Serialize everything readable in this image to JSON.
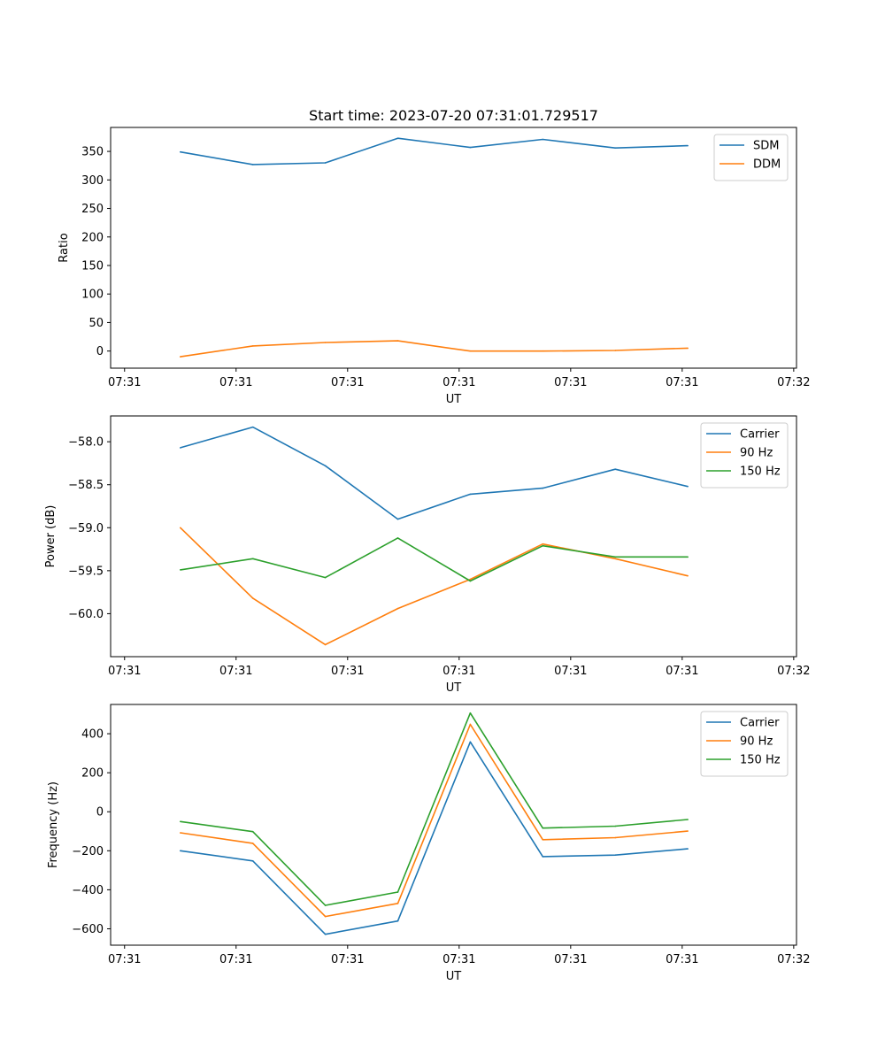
{
  "figure_title": "Start time: 2023-07-20 07:31:01.729517",
  "colors": {
    "blue": "#1f77b4",
    "orange": "#ff7f0e",
    "green": "#2ca02c"
  },
  "chart_data": [
    {
      "type": "line",
      "title": "Start time: 2023-07-20 07:31:01.729517",
      "xlabel": "UT",
      "ylabel": "Ratio",
      "x_tick_labels": [
        "07:31",
        "07:31",
        "07:31",
        "07:31",
        "07:31",
        "07:31",
        "07:32"
      ],
      "x_ticks": [
        0,
        2,
        4,
        6,
        8,
        10,
        12
      ],
      "xlim": [
        -0.25,
        12.05
      ],
      "x": [
        1,
        2.3,
        3.6,
        4.9,
        6.2,
        7.5,
        8.8,
        10.1
      ],
      "ylim": [
        -30,
        392
      ],
      "y_ticks": [
        0,
        50,
        100,
        150,
        200,
        250,
        300,
        350
      ],
      "y_tick_labels": [
        "0",
        "50",
        "100",
        "150",
        "200",
        "250",
        "300",
        "350"
      ],
      "legend": "top-right",
      "series": [
        {
          "name": "SDM",
          "color": "#1f77b4",
          "values": [
            349,
            327,
            330,
            373,
            357,
            371,
            356,
            360
          ]
        },
        {
          "name": "DDM",
          "color": "#ff7f0e",
          "values": [
            -10,
            9,
            15,
            18,
            0,
            0,
            1,
            5
          ]
        }
      ]
    },
    {
      "type": "line",
      "title": "",
      "xlabel": "UT",
      "ylabel": "Power (dB)",
      "x_tick_labels": [
        "07:31",
        "07:31",
        "07:31",
        "07:31",
        "07:31",
        "07:31",
        "07:32"
      ],
      "x_ticks": [
        0,
        2,
        4,
        6,
        8,
        10,
        12
      ],
      "xlim": [
        -0.25,
        12.05
      ],
      "x": [
        1,
        2.3,
        3.6,
        4.9,
        6.2,
        7.5,
        8.8,
        10.1
      ],
      "ylim": [
        -60.5,
        -57.7
      ],
      "y_ticks": [
        -60.0,
        -59.5,
        -59.0,
        -58.5,
        -58.0
      ],
      "y_tick_labels": [
        "−60.0",
        "−59.5",
        "−59.0",
        "−58.5",
        "−58.0"
      ],
      "legend": "top-right",
      "series": [
        {
          "name": "Carrier",
          "color": "#1f77b4",
          "values": [
            -58.07,
            -57.83,
            -58.28,
            -58.9,
            -58.61,
            -58.54,
            -58.32,
            -58.52
          ]
        },
        {
          "name": "90 Hz",
          "color": "#ff7f0e",
          "values": [
            -59.0,
            -59.82,
            -60.36,
            -59.94,
            -59.6,
            -59.19,
            -59.36,
            -59.56
          ]
        },
        {
          "name": "150 Hz",
          "color": "#2ca02c",
          "values": [
            -59.49,
            -59.36,
            -59.58,
            -59.12,
            -59.62,
            -59.21,
            -59.34,
            -59.34
          ]
        }
      ]
    },
    {
      "type": "line",
      "title": "",
      "xlabel": "UT",
      "ylabel": "Frequency (Hz)",
      "x_tick_labels": [
        "07:31",
        "07:31",
        "07:31",
        "07:31",
        "07:31",
        "07:31",
        "07:32"
      ],
      "x_ticks": [
        0,
        2,
        4,
        6,
        8,
        10,
        12
      ],
      "xlim": [
        -0.25,
        12.05
      ],
      "x": [
        1,
        2.3,
        3.6,
        4.9,
        6.2,
        7.5,
        8.8,
        10.1
      ],
      "ylim": [
        -684,
        550
      ],
      "y_ticks": [
        -600,
        -400,
        -200,
        0,
        200,
        400
      ],
      "y_tick_labels": [
        "−600",
        "−400",
        "−200",
        "0",
        "200",
        "400"
      ],
      "legend": "top-right",
      "series": [
        {
          "name": "Carrier",
          "color": "#1f77b4",
          "values": [
            -200,
            -252,
            -628,
            -560,
            358,
            -230,
            -222,
            -190
          ]
        },
        {
          "name": "90 Hz",
          "color": "#ff7f0e",
          "values": [
            -108,
            -162,
            -537,
            -470,
            448,
            -143,
            -133,
            -99
          ]
        },
        {
          "name": "150 Hz",
          "color": "#2ca02c",
          "values": [
            -50,
            -102,
            -480,
            -412,
            506,
            -84,
            -74,
            -40
          ]
        }
      ]
    }
  ]
}
